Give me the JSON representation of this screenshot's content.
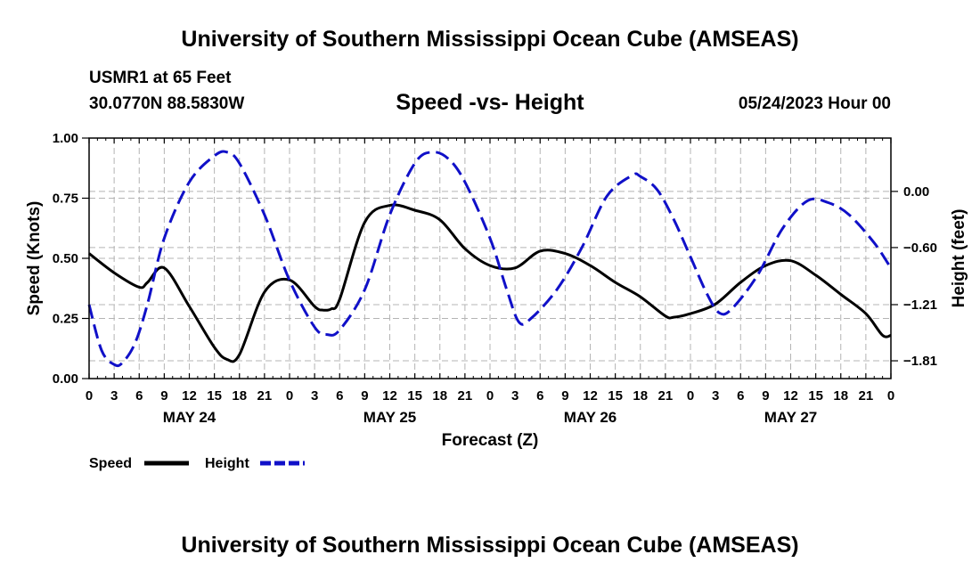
{
  "header": {
    "title": "University of Southern Mississippi Ocean Cube (AMSEAS)",
    "station": "USMR1 at 65 Feet",
    "coordinates": "30.0770N  88.5830W",
    "run": "05/24/2023 Hour 00"
  },
  "footer": {
    "title": "University of Southern Mississippi Ocean Cube (AMSEAS)"
  },
  "chart_data": {
    "type": "line",
    "title": "Speed -vs- Height",
    "xlabel": "Forecast (Z)",
    "ylabel_left": "Speed (Knots)",
    "ylabel_right": "Height (feet)",
    "x_unit": "forecast hour",
    "xlim": [
      0,
      96
    ],
    "x_tick_hours": [
      0,
      3,
      6,
      9,
      12,
      15,
      18,
      21,
      24,
      27,
      30,
      33,
      36,
      39,
      42,
      45,
      48,
      51,
      54,
      57,
      60,
      63,
      66,
      69,
      72,
      75,
      78,
      81,
      84,
      87,
      90,
      93,
      96
    ],
    "x_tick_labels": [
      "0",
      "3",
      "6",
      "9",
      "12",
      "15",
      "18",
      "21",
      "0",
      "3",
      "6",
      "9",
      "12",
      "15",
      "18",
      "21",
      "0",
      "3",
      "6",
      "9",
      "12",
      "15",
      "18",
      "21",
      "0",
      "3",
      "6",
      "9",
      "12",
      "15",
      "18",
      "21",
      "0"
    ],
    "day_labels": [
      {
        "hour": 12,
        "label": "MAY 24"
      },
      {
        "hour": 36,
        "label": "MAY 25"
      },
      {
        "hour": 60,
        "label": "MAY 26"
      },
      {
        "hour": 84,
        "label": "MAY 27"
      }
    ],
    "ylim_left": [
      0,
      1
    ],
    "y_ticks_left": [
      0,
      0.25,
      0.5,
      0.75,
      1.0
    ],
    "y_tick_labels_left": [
      "0.00",
      "0.25",
      "0.50",
      "0.75",
      "1.00"
    ],
    "ylim_right": [
      -2.0,
      0.57
    ],
    "y_ticks_right": [
      0.0,
      -0.6,
      -1.21,
      -1.81
    ],
    "y_tick_labels_right": [
      "0.00",
      "−0.60",
      "−1.21",
      "−1.81"
    ],
    "grid": true,
    "series": [
      {
        "name": "Speed",
        "axis": "left",
        "color": "#000000",
        "dash": "solid",
        "x": [
          0,
          3,
          6,
          7,
          9,
          12,
          15,
          16.5,
          18,
          21,
          24,
          27,
          28,
          29,
          30,
          33,
          36,
          39,
          42,
          45,
          48,
          51,
          54,
          57,
          60,
          63,
          66,
          69,
          70,
          72,
          75,
          78,
          81,
          84,
          87,
          90,
          93,
          95,
          96
        ],
        "y": [
          0.52,
          0.44,
          0.38,
          0.4,
          0.46,
          0.3,
          0.13,
          0.08,
          0.1,
          0.36,
          0.41,
          0.3,
          0.285,
          0.29,
          0.33,
          0.65,
          0.72,
          0.7,
          0.66,
          0.54,
          0.47,
          0.46,
          0.53,
          0.52,
          0.47,
          0.4,
          0.34,
          0.26,
          0.255,
          0.27,
          0.31,
          0.4,
          0.47,
          0.49,
          0.43,
          0.35,
          0.27,
          0.18,
          0.18
        ]
      },
      {
        "name": "Height",
        "axis": "right",
        "color": "#1010c8",
        "dash": "dashed",
        "x": [
          0,
          1.5,
          3,
          4,
          5.5,
          7,
          9,
          12,
          15,
          16.5,
          18,
          21,
          24,
          27,
          28.5,
          30,
          33,
          36,
          39,
          41,
          43,
          45,
          48,
          50,
          51.5,
          53,
          56,
          59,
          62,
          65,
          66,
          68,
          70,
          72,
          74,
          75.5,
          77,
          80,
          83,
          86,
          88.5,
          91,
          94,
          96
        ],
        "y": [
          -1.21,
          -1.7,
          -1.85,
          -1.83,
          -1.62,
          -1.2,
          -0.5,
          0.1,
          0.38,
          0.42,
          0.3,
          -0.25,
          -0.95,
          -1.45,
          -1.53,
          -1.48,
          -1.05,
          -0.25,
          0.3,
          0.42,
          0.35,
          0.1,
          -0.5,
          -1.05,
          -1.4,
          -1.35,
          -1.05,
          -0.6,
          -0.05,
          0.17,
          0.16,
          0.02,
          -0.3,
          -0.7,
          -1.1,
          -1.3,
          -1.25,
          -0.9,
          -0.4,
          -0.1,
          -0.12,
          -0.25,
          -0.55,
          -0.82
        ]
      }
    ]
  }
}
